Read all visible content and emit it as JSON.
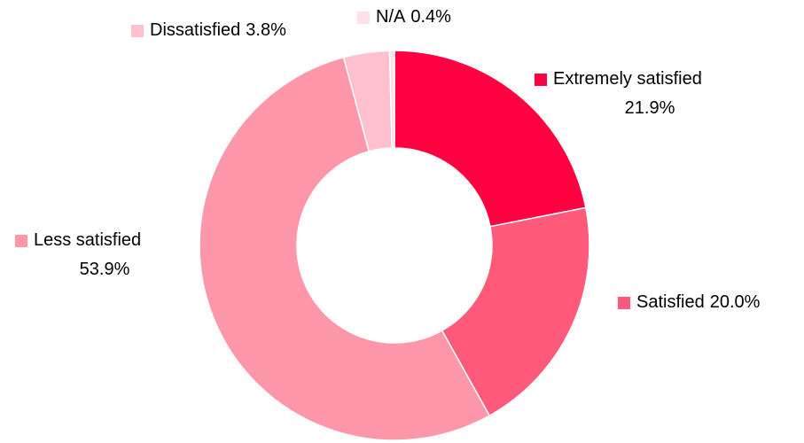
{
  "chart_data": {
    "type": "donut",
    "categories": [
      "Extremely satisfied",
      "Satisfied",
      "Less satisfied",
      "Dissatisfied",
      "N/A"
    ],
    "values": [
      21.9,
      20.0,
      53.9,
      3.8,
      0.4
    ],
    "value_labels": [
      "21.9%",
      "20.0%",
      "53.9%",
      "3.8%",
      "0.4%"
    ],
    "colors": [
      "#ff0040",
      "#ff5a7a",
      "#ff97ab",
      "#ffc0d0",
      "#ffe0e8"
    ]
  }
}
